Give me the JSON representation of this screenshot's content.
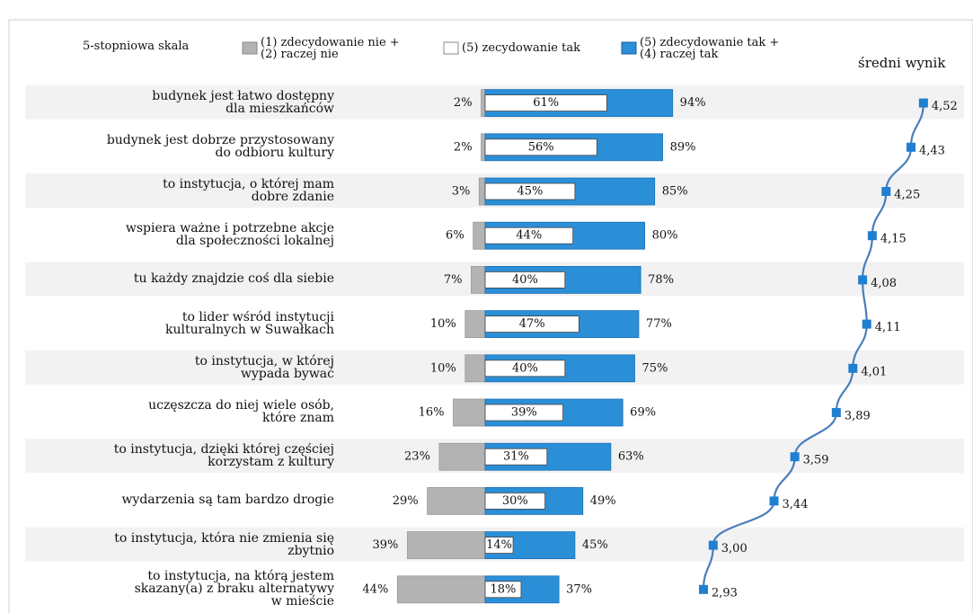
{
  "chart_data": {
    "type": "diverging-bar-line",
    "legend_title": "5-stopniowa skala",
    "average_title": "średni wynik",
    "categories": [
      "budynek jest łatwo dostępny\ndla mieszkańców",
      "budynek jest dobrze przystosowany\ndo odbioru kultury",
      "to instytucja, o której mam\ndobre zdanie",
      "wspiera ważne i potrzebne akcje\ndla społeczności lokalnej",
      "tu każdy znajdzie coś dla siebie",
      "to lider wśród instytucji\nkulturalnych w Suwałkach",
      "to instytucja, w której\nwypada bywać",
      "uczęszcza do niej wiele osób,\nktóre znam",
      "to instytucja, dzięki której częściej\nkorzystam z kultury",
      "wydarzenia są tam bardzo drogie",
      "to instytucja, która nie zmienia się\nzbytnio",
      "to instytucja, na którą jestem\nskazany(a) z braku alternatywy\nw mieście"
    ],
    "series": [
      {
        "name": "(1) zdecydowanie nie +\n(2)  raczej nie",
        "color": "#b3b3b3",
        "values": [
          2,
          2,
          3,
          6,
          7,
          10,
          10,
          16,
          23,
          29,
          39,
          44
        ],
        "value_labels": [
          "2%",
          "2%",
          "3%",
          "6%",
          "7%",
          "10%",
          "10%",
          "16%",
          "23%",
          "29%",
          "39%",
          "44%"
        ]
      },
      {
        "name": "(5) zecydowanie tak",
        "color": "#ffffff",
        "values": [
          61,
          56,
          45,
          44,
          40,
          47,
          40,
          39,
          31,
          30,
          14,
          18
        ],
        "value_labels": [
          "61%",
          "56%",
          "45%",
          "44%",
          "40%",
          "47%",
          "40%",
          "39%",
          "31%",
          "30%",
          "14%",
          "18%"
        ]
      },
      {
        "name": "(5) zdecydowanie tak +\n(4) raczej tak",
        "color": "#2b8fd8",
        "values": [
          94,
          89,
          85,
          80,
          78,
          77,
          75,
          69,
          63,
          49,
          45,
          37
        ],
        "value_labels": [
          "94%",
          "89%",
          "85%",
          "80%",
          "78%",
          "77%",
          "75%",
          "69%",
          "63%",
          "49%",
          "45%",
          "37%"
        ]
      }
    ],
    "average": {
      "name": "średni wynik",
      "color": "#4a7ebb",
      "marker_color": "#1f7fd0",
      "values": [
        4.52,
        4.43,
        4.25,
        4.15,
        4.08,
        4.11,
        4.01,
        3.89,
        3.59,
        3.44,
        3.0,
        2.93
      ],
      "value_labels": [
        "4,52",
        "4,43",
        "4,25",
        "4,15",
        "4,08",
        "4,11",
        "4,01",
        "3,89",
        "3,59",
        "3,44",
        "3,00",
        "2,93"
      ]
    }
  }
}
